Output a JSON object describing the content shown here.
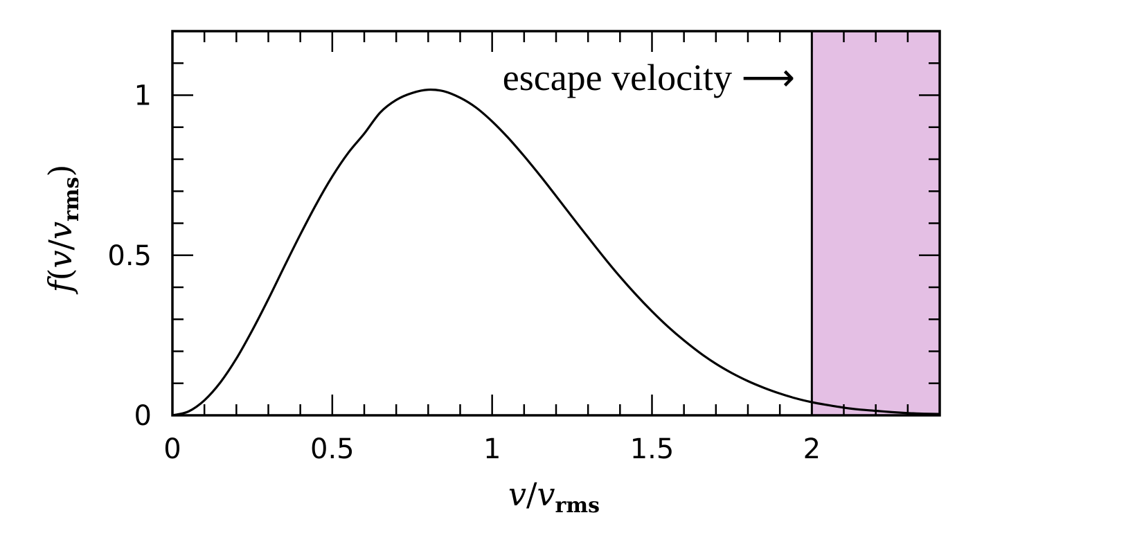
{
  "chart_data": {
    "type": "line",
    "x_range": [
      0,
      2.4
    ],
    "y_range": [
      0,
      1.2
    ],
    "x_ticks": [
      {
        "value": 0,
        "label": "0"
      },
      {
        "value": 0.5,
        "label": "0.5"
      },
      {
        "value": 1,
        "label": "1"
      },
      {
        "value": 1.5,
        "label": "1.5"
      },
      {
        "value": 2,
        "label": "2"
      }
    ],
    "x_minor_step": 0.1,
    "y_ticks": [
      {
        "value": 0,
        "label": "0"
      },
      {
        "value": 0.5,
        "label": "0.5"
      },
      {
        "value": 1,
        "label": "1"
      }
    ],
    "y_minor_step": 0.1,
    "xlabel": {
      "main": "v",
      "slash": "/",
      "base": "v",
      "sub": "rms"
    },
    "ylabel": {
      "func": "f",
      "open": "(",
      "main": "v",
      "slash": "/",
      "base": "v",
      "sub": "rms",
      "close": ")"
    },
    "series": [
      {
        "x": [
          0,
          0.05,
          0.1,
          0.15,
          0.2,
          0.25,
          0.3,
          0.35,
          0.4,
          0.45,
          0.5,
          0.55,
          0.6,
          0.65,
          0.7,
          0.75,
          0.8,
          0.85,
          0.9,
          0.95,
          1.0,
          1.05,
          1.1,
          1.15,
          1.2,
          1.25,
          1.3,
          1.35,
          1.4,
          1.45,
          1.5,
          1.55,
          1.6,
          1.65,
          1.7,
          1.75,
          1.8,
          1.85,
          1.9,
          1.95,
          2.0,
          2.05,
          2.1,
          2.15,
          2.2,
          2.25,
          2.3,
          2.35,
          2.4
        ],
        "y": [
          0,
          0.012,
          0.047,
          0.103,
          0.177,
          0.266,
          0.363,
          0.465,
          0.565,
          0.66,
          0.746,
          0.82,
          0.88,
          0.946,
          0.985,
          1.007,
          1.017,
          1.012,
          0.992,
          0.961,
          0.918,
          0.867,
          0.81,
          0.749,
          0.685,
          0.62,
          0.556,
          0.493,
          0.433,
          0.377,
          0.325,
          0.277,
          0.234,
          0.195,
          0.161,
          0.132,
          0.107,
          0.086,
          0.068,
          0.053,
          0.041,
          0.032,
          0.024,
          0.018,
          0.014,
          0.01,
          0.007,
          0.005,
          0.004
        ],
        "color": "#000000"
      }
    ],
    "shaded_region": {
      "x_start": 2.0,
      "x_end": 2.4,
      "color": "#e4bfe4"
    },
    "annotation": {
      "text": "escape velocity ⟶"
    }
  }
}
